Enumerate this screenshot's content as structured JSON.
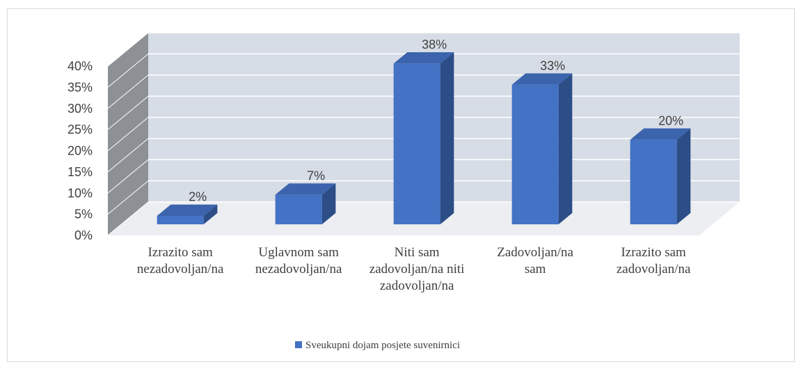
{
  "chart_data": {
    "type": "bar3d",
    "categories": [
      "Izrazito sam nezadovoljan/na",
      "Uglavnom sam nezadovoljan/na",
      "Niti sam zadovoljan/na niti zadovoljan/na",
      "Zadovoljan/na sam",
      "Izrazito sam zadovoljan/na"
    ],
    "series": [
      {
        "name": "Sveukupni dojam posjete suvenirnici",
        "color": "#4472c4",
        "values": [
          2,
          7,
          38,
          33,
          20
        ],
        "value_labels": [
          "2%",
          "7%",
          "38%",
          "33%",
          "20%"
        ]
      }
    ],
    "ylim": [
      0,
      40
    ],
    "yticks": [
      {
        "value": 0,
        "label": "0%"
      },
      {
        "value": 5,
        "label": "5%"
      },
      {
        "value": 10,
        "label": "10%"
      },
      {
        "value": 15,
        "label": "15%"
      },
      {
        "value": 20,
        "label": "20%"
      },
      {
        "value": 25,
        "label": "25%"
      },
      {
        "value": 30,
        "label": "30%"
      },
      {
        "value": 35,
        "label": "35%"
      },
      {
        "value": 40,
        "label": "40%"
      }
    ],
    "grid": true,
    "legend": "bottom"
  }
}
